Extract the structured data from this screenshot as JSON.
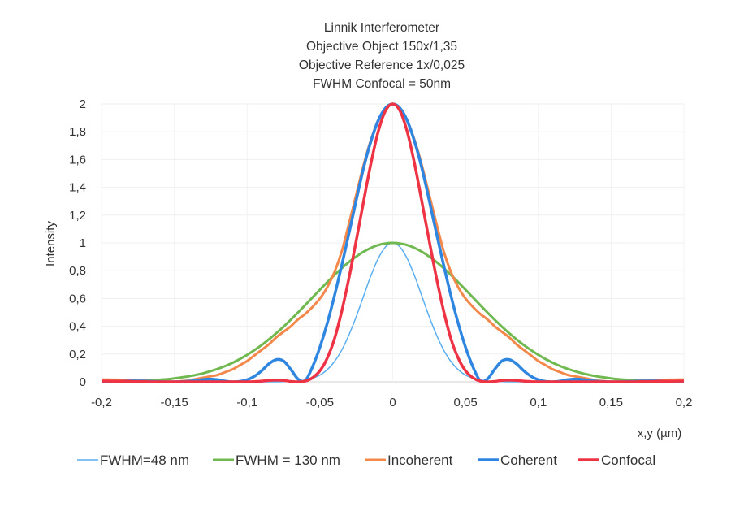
{
  "chart_data": {
    "type": "line",
    "title_lines": [
      "Linnik Interferometer",
      "Objective Object 150x/1,35",
      "Objective Reference 1x/0,025",
      "FWHM Confocal = 50nm"
    ],
    "xlabel": "x,y (µm)",
    "ylabel": "Intensity",
    "xlim": [
      -0.2,
      0.2
    ],
    "ylim": [
      0,
      2
    ],
    "x_ticks": [
      "-0,2",
      "-0,15",
      "-0,1",
      "-0,05",
      "0",
      "0,05",
      "0,1",
      "0,15",
      "0,2"
    ],
    "x_tick_values": [
      -0.2,
      -0.15,
      -0.1,
      -0.05,
      0,
      0.05,
      0.1,
      0.15,
      0.2
    ],
    "y_ticks": [
      "0",
      "0,2",
      "0,4",
      "0,6",
      "0,8",
      "1",
      "1,2",
      "1,4",
      "1,6",
      "1,8",
      "2"
    ],
    "y_tick_values": [
      0,
      0.2,
      0.4,
      0.6,
      0.8,
      1,
      1.2,
      1.4,
      1.6,
      1.8,
      2
    ],
    "grid": true,
    "legend_position": "bottom",
    "symmetric_about_zero": true,
    "x_half": [
      0,
      0.005,
      0.01,
      0.015,
      0.02,
      0.025,
      0.03,
      0.035,
      0.04,
      0.045,
      0.05,
      0.055,
      0.06,
      0.065,
      0.07,
      0.075,
      0.08,
      0.085,
      0.09,
      0.095,
      0.1,
      0.105,
      0.11,
      0.115,
      0.12,
      0.125,
      0.13,
      0.135,
      0.14,
      0.145,
      0.15,
      0.155,
      0.16,
      0.165,
      0.17,
      0.175,
      0.18,
      0.185,
      0.19,
      0.195,
      0.2
    ],
    "series": [
      {
        "name": "FWHM=48 nm",
        "color": "#5aaef0",
        "width": 1.5,
        "values": [
          1,
          0.97,
          0.887,
          0.763,
          0.618,
          0.471,
          0.339,
          0.229,
          0.146,
          0.087,
          0.049,
          0.026,
          0.013,
          0.006,
          0.003,
          0.001,
          0,
          0,
          0,
          0,
          0,
          0,
          0,
          0,
          0,
          0,
          0,
          0,
          0,
          0,
          0,
          0,
          0,
          0,
          0,
          0,
          0,
          0,
          0,
          0,
          0
        ]
      },
      {
        "name": "FWHM = 130 nm",
        "color": "#70b850",
        "width": 3,
        "values": [
          1,
          0.996,
          0.984,
          0.964,
          0.937,
          0.902,
          0.863,
          0.818,
          0.769,
          0.717,
          0.663,
          0.609,
          0.554,
          0.5,
          0.447,
          0.397,
          0.35,
          0.306,
          0.265,
          0.228,
          0.194,
          0.164,
          0.137,
          0.114,
          0.094,
          0.077,
          0.062,
          0.05,
          0.04,
          0.032,
          0.025,
          0.019,
          0.015,
          0.011,
          0.009,
          0.007,
          0.005,
          0.004,
          0.003,
          0.002,
          0.001
        ]
      },
      {
        "name": "Incoherent",
        "color": "#f4884a",
        "width": 3,
        "values": [
          2,
          1.97,
          1.88,
          1.74,
          1.56,
          1.35,
          1.14,
          0.94,
          0.79,
          0.68,
          0.6,
          0.54,
          0.49,
          0.45,
          0.4,
          0.36,
          0.32,
          0.27,
          0.23,
          0.19,
          0.15,
          0.12,
          0.09,
          0.07,
          0.05,
          0.04,
          0.03,
          0.02,
          0.01,
          0.005,
          0,
          0,
          0.002,
          0.005,
          0.008,
          0.01,
          0.012,
          0.014,
          0.015,
          0.016,
          0.016
        ]
      },
      {
        "name": "Coherent",
        "color": "#2f86e0",
        "width": 3.5,
        "values": [
          2,
          1.97,
          1.88,
          1.73,
          1.54,
          1.31,
          1.07,
          0.84,
          0.62,
          0.42,
          0.25,
          0.11,
          0.01,
          0.02,
          0.09,
          0.15,
          0.16,
          0.13,
          0.08,
          0.04,
          0.015,
          0.003,
          0,
          0.005,
          0.015,
          0.02,
          0.017,
          0.01,
          0.004,
          0.001,
          0,
          0,
          0.001,
          0.003,
          0.005,
          0.006,
          0.006,
          0.005,
          0.004,
          0.003,
          0.002
        ]
      },
      {
        "name": "Confocal",
        "color": "#ee3344",
        "width": 3.5,
        "values": [
          2,
          1.95,
          1.8,
          1.57,
          1.3,
          1.02,
          0.75,
          0.51,
          0.31,
          0.17,
          0.08,
          0.03,
          0.005,
          0,
          0.003,
          0.01,
          0.012,
          0.01,
          0.005,
          0.002,
          0,
          0,
          0,
          0,
          0,
          0,
          0,
          0,
          0,
          0,
          0,
          0,
          0,
          0,
          0.001,
          0.002,
          0.003,
          0.004,
          0.004,
          0.005,
          0.005
        ]
      }
    ]
  }
}
